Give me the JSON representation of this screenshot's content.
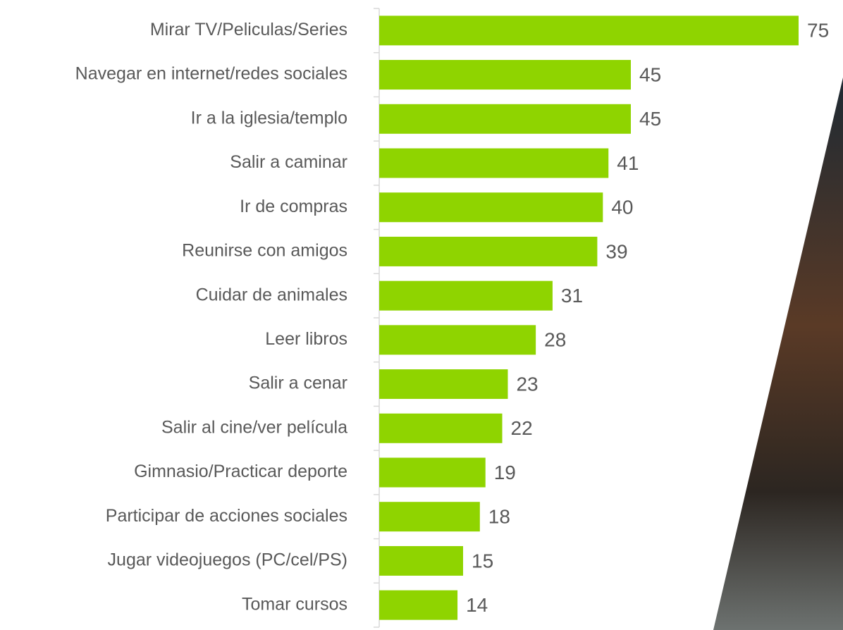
{
  "chart_data": {
    "type": "bar",
    "orientation": "horizontal",
    "categories": [
      "Mirar TV/Peliculas/Series",
      "Navegar en internet/redes sociales",
      "Ir a la iglesia/templo",
      "Salir a caminar",
      "Ir de compras",
      "Reunirse con amigos",
      "Cuidar de animales",
      "Leer libros",
      "Salir a cenar",
      "Salir al cine/ver película",
      "Gimnasio/Practicar deporte",
      "Participar de acciones sociales",
      "Jugar videojuegos (PC/cel/PS)",
      "Tomar cursos"
    ],
    "values": [
      75,
      45,
      45,
      41,
      40,
      39,
      31,
      28,
      23,
      22,
      19,
      18,
      15,
      14
    ],
    "color": "#8fd400"
  }
}
